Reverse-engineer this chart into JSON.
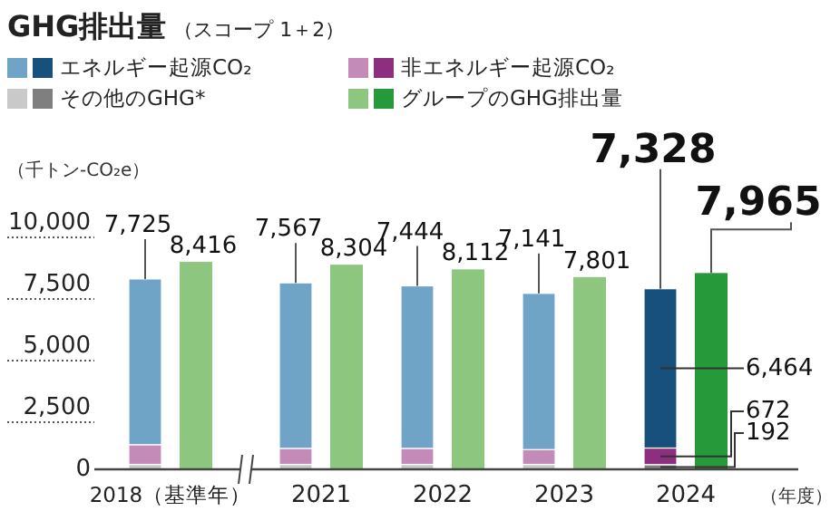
{
  "chart_data": {
    "type": "bar",
    "title": "GHG排出量",
    "subtitle": "（スコープ 1＋2）",
    "ylabel": "（千トン-CO₂e）",
    "xlabel": "（年度）",
    "categories": [
      "2018（基準年）",
      "2021",
      "2022",
      "2023",
      "2024"
    ],
    "legend": "top",
    "ylim": [
      0,
      10000
    ],
    "yticks": [
      {
        "value": 0,
        "label": "0"
      },
      {
        "value": 2500,
        "label": "2,500"
      },
      {
        "value": 5000,
        "label": "5,000"
      },
      {
        "value": 7500,
        "label": "7,500"
      },
      {
        "value": 10000,
        "label": "10,000"
      }
    ],
    "series": [
      {
        "name": "その他のGHG*",
        "colors": [
          "#c9c9c9",
          "#c9c9c9",
          "#c9c9c9",
          "#c9c9c9",
          "#7f7f7f"
        ],
        "base": [
          0,
          0,
          0,
          0,
          0
        ],
        "values": [
          200,
          200,
          200,
          200,
          192
        ],
        "value_labels": [
          null,
          null,
          null,
          null,
          "192"
        ]
      },
      {
        "name": "非エネルギー起源CO₂",
        "colors": [
          "#c48bb9",
          "#c48bb9",
          "#c48bb9",
          "#c48bb9",
          "#8e2e7f"
        ],
        "base": [
          200,
          200,
          200,
          200,
          192
        ],
        "values": [
          800,
          650,
          650,
          600,
          672
        ],
        "value_labels": [
          null,
          null,
          null,
          null,
          "672"
        ]
      },
      {
        "name": "エネルギー起源CO₂",
        "colors": [
          "#70a4c7",
          "#70a4c7",
          "#70a4c7",
          "#70a4c7",
          "#174f7d"
        ],
        "base": [
          1000,
          850,
          850,
          800,
          864
        ],
        "values": [
          6725,
          6717,
          6594,
          6341,
          6464
        ],
        "value_labels": [
          null,
          null,
          null,
          null,
          "6,464"
        ]
      },
      {
        "name": "グループのGHG排出量",
        "colors": [
          "#8cc67f",
          "#8cc67f",
          "#8cc67f",
          "#8cc67f",
          "#26993b"
        ],
        "values": [
          8416,
          8304,
          8112,
          7801,
          7965
        ],
        "value_labels": [
          "8,416",
          "8,304",
          "8,112",
          "7,801",
          "7,965"
        ]
      }
    ],
    "annotations": [
      {
        "text": "7,725",
        "x": "2018（基準年）",
        "y": 7725
      },
      {
        "text": "7,567",
        "x": "2021",
        "y": 7567
      },
      {
        "text": "7,444",
        "x": "2022",
        "y": 7444
      },
      {
        "text": "7,141",
        "x": "2023",
        "y": 7141
      },
      {
        "text": "7,328",
        "x": "2024",
        "y": 7328
      }
    ]
  }
}
